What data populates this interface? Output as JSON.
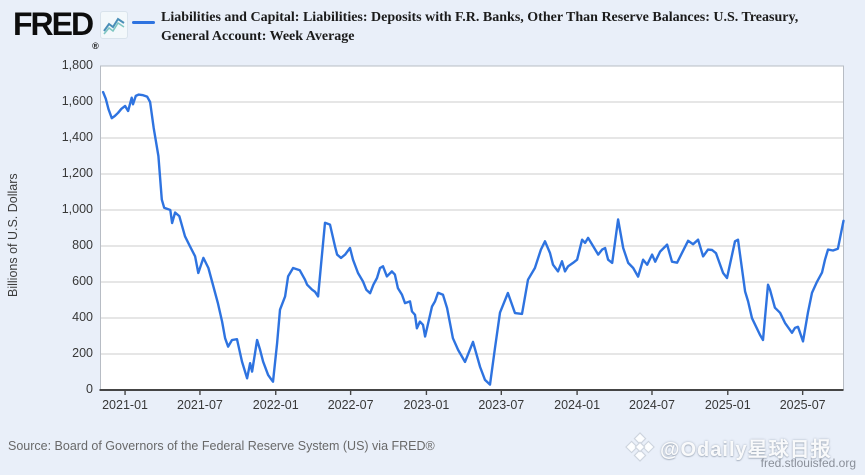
{
  "header": {
    "logo_text": "FRED",
    "logo_registered": "®",
    "series_title_line1": "Liabilities and Capital: Liabilities: Deposits with F.R. Banks, Other Than Reserve Balances: U.S. Treasury,",
    "series_title_line2": "General Account: Week Average"
  },
  "footer": {
    "source_text": "Source: Board of Governors of the Federal Reserve System (US) via FRED®",
    "watermark_text": "@Odaily星球日报",
    "site_link": "fred.stlouisfed.org"
  },
  "colors": {
    "background": "#e9eff9",
    "plot_background": "#ffffff",
    "gridline": "#cccccc",
    "frame": "#b7bcc4",
    "axis_line": "#454545",
    "line": "#2e73e0",
    "tick_text": "#383838"
  },
  "chart_data": {
    "type": "line",
    "title": "Liabilities and Capital: Liabilities: Deposits with F.R. Banks, Other Than Reserve Balances: U.S. Treasury, General Account: Week Average",
    "series_name": "U.S. Treasury General Account, Week Average",
    "xlabel": "",
    "ylabel": "Billions of U.S. Dollars",
    "grid": "horizontal",
    "legend_position": "top",
    "line_color": "#2e73e0",
    "x_unit": "decimal_year",
    "x_axis_range": [
      2020.837,
      2025.768
    ],
    "ylim": [
      0,
      1800
    ],
    "y_ticks": [
      0,
      200,
      400,
      600,
      800,
      1000,
      1200,
      1400,
      1600,
      1800
    ],
    "y_tick_labels": [
      "0",
      "200",
      "400",
      "600",
      "800",
      "1,000",
      "1,200",
      "1,400",
      "1,600",
      "1,800"
    ],
    "x_ticks": [
      {
        "t": 2021.0,
        "label": "2021-01"
      },
      {
        "t": 2021.497,
        "label": "2021-07"
      },
      {
        "t": 2022.0,
        "label": "2022-01"
      },
      {
        "t": 2022.497,
        "label": "2022-07"
      },
      {
        "t": 2023.0,
        "label": "2023-01"
      },
      {
        "t": 2023.497,
        "label": "2023-07"
      },
      {
        "t": 2024.0,
        "label": "2024-01"
      },
      {
        "t": 2024.497,
        "label": "2024-07"
      },
      {
        "t": 2025.0,
        "label": "2025-01"
      },
      {
        "t": 2025.497,
        "label": "2025-07"
      }
    ],
    "points": [
      [
        2020.854,
        1655
      ],
      [
        2020.872,
        1618
      ],
      [
        2020.89,
        1560
      ],
      [
        2020.912,
        1510
      ],
      [
        2020.932,
        1522
      ],
      [
        2020.954,
        1540
      ],
      [
        2020.976,
        1562
      ],
      [
        2021.0,
        1578
      ],
      [
        2021.02,
        1550
      ],
      [
        2021.044,
        1624
      ],
      [
        2021.053,
        1587
      ],
      [
        2021.071,
        1634
      ],
      [
        2021.09,
        1641
      ],
      [
        2021.12,
        1638
      ],
      [
        2021.146,
        1630
      ],
      [
        2021.166,
        1600
      ],
      [
        2021.19,
        1455
      ],
      [
        2021.221,
        1300
      ],
      [
        2021.244,
        1058
      ],
      [
        2021.26,
        1012
      ],
      [
        2021.3,
        1000
      ],
      [
        2021.312,
        928
      ],
      [
        2021.332,
        986
      ],
      [
        2021.36,
        966
      ],
      [
        2021.398,
        854
      ],
      [
        2021.431,
        798
      ],
      [
        2021.465,
        743
      ],
      [
        2021.486,
        650
      ],
      [
        2021.52,
        734
      ],
      [
        2021.553,
        678
      ],
      [
        2021.586,
        575
      ],
      [
        2021.617,
        480
      ],
      [
        2021.644,
        380
      ],
      [
        2021.664,
        288
      ],
      [
        2021.684,
        241
      ],
      [
        2021.71,
        278
      ],
      [
        2021.743,
        282
      ],
      [
        2021.776,
        158
      ],
      [
        2021.81,
        65
      ],
      [
        2021.83,
        149
      ],
      [
        2021.843,
        102
      ],
      [
        2021.876,
        278
      ],
      [
        2021.896,
        223
      ],
      [
        2021.916,
        158
      ],
      [
        2021.949,
        84
      ],
      [
        2021.969,
        60
      ],
      [
        2021.982,
        46
      ],
      [
        2022.009,
        260
      ],
      [
        2022.028,
        446
      ],
      [
        2022.062,
        520
      ],
      [
        2022.082,
        631
      ],
      [
        2022.115,
        678
      ],
      [
        2022.16,
        665
      ],
      [
        2022.194,
        613
      ],
      [
        2022.208,
        585
      ],
      [
        2022.241,
        557
      ],
      [
        2022.261,
        545
      ],
      [
        2022.281,
        520
      ],
      [
        2022.301,
        700
      ],
      [
        2022.327,
        929
      ],
      [
        2022.36,
        919
      ],
      [
        2022.393,
        798
      ],
      [
        2022.407,
        752
      ],
      [
        2022.433,
        734
      ],
      [
        2022.46,
        752
      ],
      [
        2022.493,
        789
      ],
      [
        2022.513,
        724
      ],
      [
        2022.546,
        650
      ],
      [
        2022.579,
        603
      ],
      [
        2022.601,
        557
      ],
      [
        2022.626,
        538
      ],
      [
        2022.648,
        585
      ],
      [
        2022.672,
        622
      ],
      [
        2022.692,
        678
      ],
      [
        2022.712,
        687
      ],
      [
        2022.738,
        631
      ],
      [
        2022.771,
        659
      ],
      [
        2022.791,
        641
      ],
      [
        2022.811,
        566
      ],
      [
        2022.838,
        529
      ],
      [
        2022.858,
        483
      ],
      [
        2022.891,
        492
      ],
      [
        2022.904,
        436
      ],
      [
        2022.924,
        418
      ],
      [
        2022.937,
        343
      ],
      [
        2022.957,
        380
      ],
      [
        2022.977,
        362
      ],
      [
        2022.991,
        297
      ],
      [
        2023.037,
        464
      ],
      [
        2023.057,
        492
      ],
      [
        2023.077,
        540
      ],
      [
        2023.11,
        529
      ],
      [
        2023.137,
        455
      ],
      [
        2023.176,
        288
      ],
      [
        2023.21,
        223
      ],
      [
        2023.256,
        156
      ],
      [
        2023.309,
        267
      ],
      [
        2023.356,
        128
      ],
      [
        2023.389,
        56
      ],
      [
        2023.422,
        30
      ],
      [
        2023.455,
        234
      ],
      [
        2023.488,
        430
      ],
      [
        2023.541,
        539
      ],
      [
        2023.588,
        427
      ],
      [
        2023.634,
        423
      ],
      [
        2023.674,
        613
      ],
      [
        2023.72,
        678
      ],
      [
        2023.76,
        780
      ],
      [
        2023.787,
        826
      ],
      [
        2023.82,
        761
      ],
      [
        2023.84,
        696
      ],
      [
        2023.873,
        659
      ],
      [
        2023.9,
        715
      ],
      [
        2023.92,
        659
      ],
      [
        2023.94,
        687
      ],
      [
        2023.973,
        706
      ],
      [
        2024.0,
        724
      ],
      [
        2024.033,
        835
      ],
      [
        2024.053,
        817
      ],
      [
        2024.073,
        845
      ],
      [
        2024.1,
        808
      ],
      [
        2024.12,
        780
      ],
      [
        2024.14,
        752
      ],
      [
        2024.166,
        780
      ],
      [
        2024.186,
        789
      ],
      [
        2024.206,
        724
      ],
      [
        2024.233,
        706
      ],
      [
        2024.272,
        947
      ],
      [
        2024.306,
        789
      ],
      [
        2024.339,
        706
      ],
      [
        2024.372,
        678
      ],
      [
        2024.405,
        630
      ],
      [
        2024.438,
        724
      ],
      [
        2024.465,
        696
      ],
      [
        2024.498,
        752
      ],
      [
        2024.518,
        713
      ],
      [
        2024.551,
        769
      ],
      [
        2024.597,
        808
      ],
      [
        2024.63,
        713
      ],
      [
        2024.664,
        707
      ],
      [
        2024.697,
        763
      ],
      [
        2024.737,
        829
      ],
      [
        2024.77,
        810
      ],
      [
        2024.803,
        835
      ],
      [
        2024.836,
        742
      ],
      [
        2024.869,
        780
      ],
      [
        2024.896,
        778
      ],
      [
        2024.922,
        760
      ],
      [
        2024.969,
        650
      ],
      [
        2024.995,
        622
      ],
      [
        2025.048,
        826
      ],
      [
        2025.068,
        835
      ],
      [
        2025.115,
        547
      ],
      [
        2025.135,
        492
      ],
      [
        2025.161,
        399
      ],
      [
        2025.214,
        306
      ],
      [
        2025.234,
        278
      ],
      [
        2025.267,
        585
      ],
      [
        2025.28,
        557
      ],
      [
        2025.313,
        457
      ],
      [
        2025.347,
        429
      ],
      [
        2025.38,
        373
      ],
      [
        2025.426,
        318
      ],
      [
        2025.446,
        345
      ],
      [
        2025.466,
        351
      ],
      [
        2025.499,
        270
      ],
      [
        2025.532,
        429
      ],
      [
        2025.559,
        540
      ],
      [
        2025.592,
        601
      ],
      [
        2025.625,
        652
      ],
      [
        2025.645,
        724
      ],
      [
        2025.665,
        780
      ],
      [
        2025.698,
        775
      ],
      [
        2025.731,
        785
      ],
      [
        2025.752,
        874
      ],
      [
        2025.768,
        940
      ]
    ]
  }
}
